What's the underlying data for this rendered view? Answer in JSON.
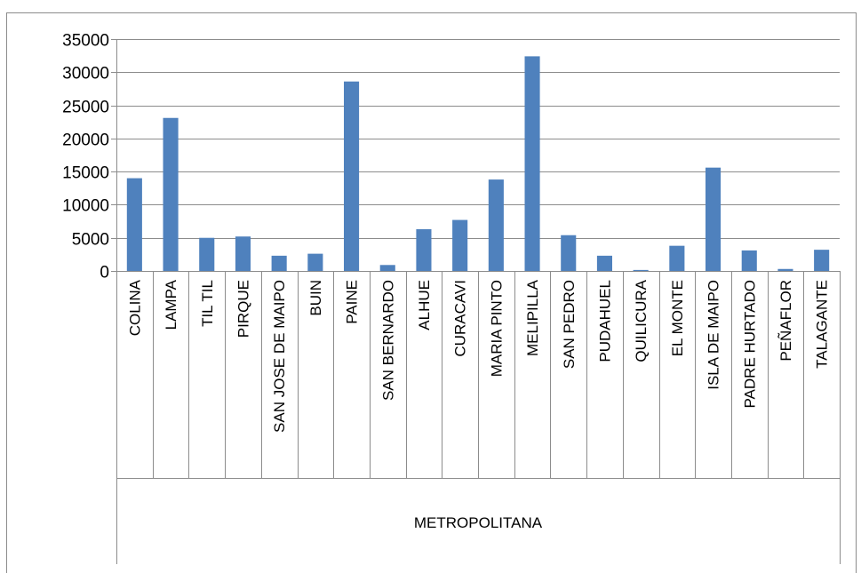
{
  "chart_data": {
    "type": "bar",
    "title": "",
    "xlabel": "",
    "ylabel": "",
    "group_label": "METROPOLITANA",
    "categories": [
      "COLINA",
      "LAMPA",
      "TIL TIL",
      "PIRQUE",
      "SAN JOSE DE MAIPO",
      "BUIN",
      "PAINE",
      "SAN BERNARDO",
      "ALHUE",
      "CURACAVI",
      "MARIA PINTO",
      "MELIPILLA",
      "SAN PEDRO",
      "PUDAHUEL",
      "QUILICURA",
      "EL MONTE",
      "ISLA DE MAIPO",
      "PADRE HURTADO",
      "PEÑAFLOR",
      "TALAGANTE"
    ],
    "values": [
      14000,
      23100,
      5000,
      5200,
      2300,
      2600,
      28600,
      900,
      6300,
      7700,
      13800,
      32400,
      5400,
      2300,
      150,
      3800,
      15600,
      3100,
      300,
      3200
    ],
    "ylim": [
      0,
      35000
    ],
    "yticks": [
      "0",
      "5000",
      "10000",
      "15000",
      "20000",
      "25000",
      "30000",
      "35000"
    ],
    "grid": true,
    "bar_color": "#4f81bd"
  }
}
